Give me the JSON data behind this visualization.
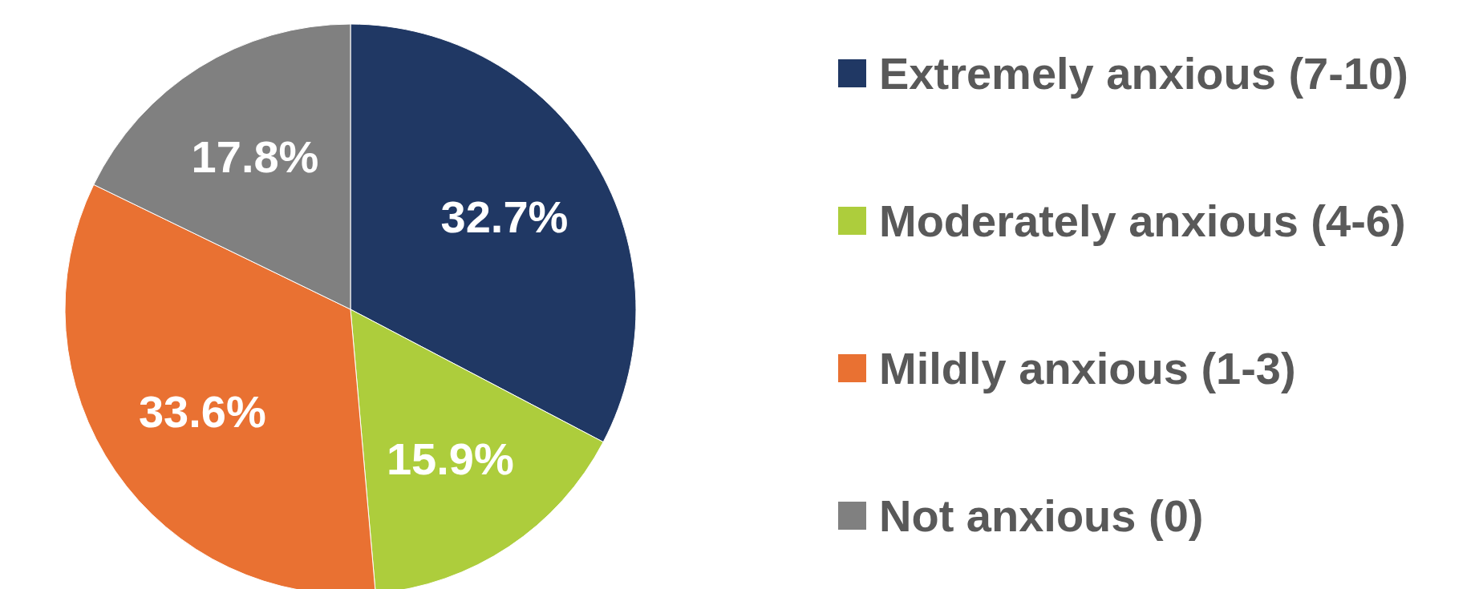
{
  "chart_data": {
    "type": "pie",
    "categories": [
      "Extremely anxious (7-10)",
      "Moderately anxious (4-6)",
      "Mildly anxious (1-3)",
      "Not anxious (0)"
    ],
    "values": [
      32.7,
      15.9,
      33.6,
      17.8
    ],
    "value_labels": [
      "32.7%",
      "15.9%",
      "33.6%",
      "17.8%"
    ],
    "colors": [
      "#203864",
      "#adcd3c",
      "#e97132",
      "#808080"
    ],
    "legend": "right"
  }
}
